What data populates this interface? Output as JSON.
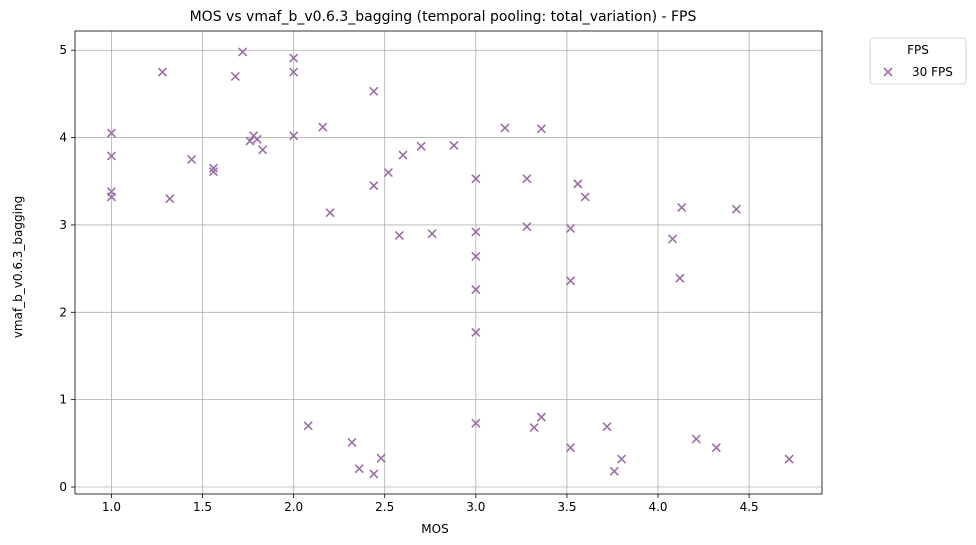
{
  "chart_data": {
    "type": "scatter",
    "title": "MOS vs vmaf_b_v0.6.3_bagging (temporal pooling: total_variation) - FPS",
    "xlabel": "MOS",
    "ylabel": "vmaf_b_v0.6.3_bagging",
    "xlim": [
      0.8,
      4.9
    ],
    "ylim": [
      -0.08,
      5.22
    ],
    "xticks": [
      1.0,
      1.5,
      2.0,
      2.5,
      3.0,
      3.5,
      4.0,
      4.5
    ],
    "xtick_labels": [
      "1.0",
      "1.5",
      "2.0",
      "2.5",
      "3.0",
      "3.5",
      "4.0",
      "4.5"
    ],
    "yticks": [
      0,
      1,
      2,
      3,
      4,
      5
    ],
    "ytick_labels": [
      "0",
      "1",
      "2",
      "3",
      "4",
      "5"
    ],
    "grid": true,
    "legend": {
      "title": "FPS",
      "placement": "outside-top-right",
      "entries": [
        "30 FPS"
      ]
    },
    "series": [
      {
        "name": "30 FPS",
        "marker": "x",
        "color": "#9b6fa6",
        "points": [
          [
            1.0,
            4.05
          ],
          [
            1.0,
            3.79
          ],
          [
            1.0,
            3.38
          ],
          [
            1.0,
            3.32
          ],
          [
            1.28,
            4.75
          ],
          [
            1.32,
            3.3
          ],
          [
            1.44,
            3.75
          ],
          [
            1.56,
            3.65
          ],
          [
            1.56,
            3.61
          ],
          [
            1.68,
            4.7
          ],
          [
            1.72,
            4.98
          ],
          [
            1.76,
            3.96
          ],
          [
            1.78,
            4.02
          ],
          [
            1.8,
            3.98
          ],
          [
            1.83,
            3.86
          ],
          [
            2.0,
            4.91
          ],
          [
            2.0,
            4.75
          ],
          [
            2.0,
            4.02
          ],
          [
            2.08,
            0.7
          ],
          [
            2.16,
            4.12
          ],
          [
            2.2,
            3.14
          ],
          [
            2.32,
            0.51
          ],
          [
            2.36,
            0.21
          ],
          [
            2.44,
            4.53
          ],
          [
            2.44,
            3.45
          ],
          [
            2.44,
            0.15
          ],
          [
            2.48,
            0.33
          ],
          [
            2.52,
            3.6
          ],
          [
            2.58,
            2.88
          ],
          [
            2.6,
            3.8
          ],
          [
            2.7,
            3.9
          ],
          [
            2.76,
            2.9
          ],
          [
            2.88,
            3.91
          ],
          [
            3.0,
            3.53
          ],
          [
            3.0,
            2.92
          ],
          [
            3.0,
            2.64
          ],
          [
            3.0,
            2.26
          ],
          [
            3.0,
            1.77
          ],
          [
            3.0,
            0.73
          ],
          [
            3.16,
            4.11
          ],
          [
            3.28,
            3.53
          ],
          [
            3.28,
            2.98
          ],
          [
            3.32,
            0.68
          ],
          [
            3.36,
            4.1
          ],
          [
            3.36,
            0.8
          ],
          [
            3.52,
            2.96
          ],
          [
            3.52,
            2.36
          ],
          [
            3.52,
            0.45
          ],
          [
            3.56,
            3.47
          ],
          [
            3.6,
            3.32
          ],
          [
            3.72,
            0.69
          ],
          [
            3.76,
            0.18
          ],
          [
            3.8,
            0.32
          ],
          [
            4.08,
            2.84
          ],
          [
            4.12,
            2.39
          ],
          [
            4.13,
            3.2
          ],
          [
            4.21,
            0.55
          ],
          [
            4.32,
            0.45
          ],
          [
            4.43,
            3.18
          ],
          [
            4.72,
            0.32
          ]
        ]
      }
    ]
  }
}
